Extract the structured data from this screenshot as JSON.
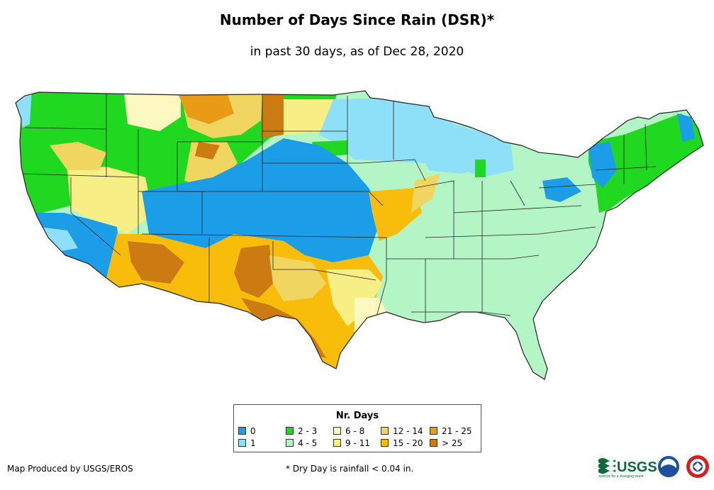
{
  "title": "Number of Days Since Rain (DSR)*",
  "subtitle": "in past 30 days, as of Dec 28, 2020",
  "legend": {
    "title": "Nr. Days",
    "items": [
      {
        "label": "0",
        "color": "#1c9de8"
      },
      {
        "label": "1",
        "color": "#8ee0f8"
      },
      {
        "label": "2 - 3",
        "color": "#1fd81f"
      },
      {
        "label": "4 - 5",
        "color": "#b3f5c5"
      },
      {
        "label": "6 - 8",
        "color": "#fdf8c0"
      },
      {
        "label": "9 - 11",
        "color": "#f7ef86"
      },
      {
        "label": "12 - 14",
        "color": "#f1d561"
      },
      {
        "label": "15 - 20",
        "color": "#f7bd0a"
      },
      {
        "label": "21 - 25",
        "color": "#e99b15"
      },
      {
        "label": "> 25",
        "color": "#cc7b12"
      }
    ]
  },
  "credit": "Map Produced by USGS/EROS",
  "footnote": "* Dry Day is rainfall < 0.04 in.",
  "logos": {
    "usgs_text": "USGS",
    "usgs_tagline": "science for a changing world",
    "noaa_text": "noaa"
  }
}
